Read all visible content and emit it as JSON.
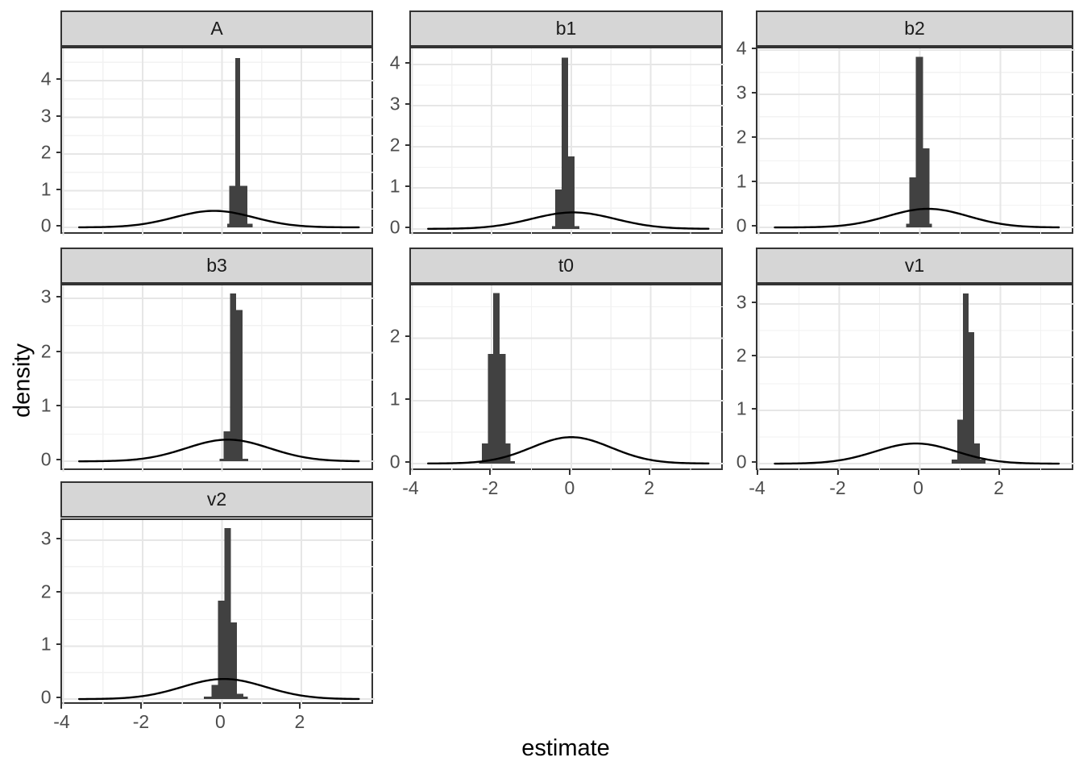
{
  "figure": {
    "xlabel": "estimate",
    "ylabel": "density",
    "x_ticks": [
      -4,
      -2,
      0,
      2
    ],
    "x_minor": [
      -3,
      -1,
      1,
      3
    ],
    "xlim": [
      -4.03,
      3.85
    ],
    "curve_span": [
      -3.6,
      3.45
    ],
    "grid": "on",
    "colors": {
      "background": "#ffffff",
      "bar_fill": "#414141",
      "density_line": "#000000",
      "strip_fill": "#d6d6d6",
      "strip_border": "#333333",
      "panel_border": "#333333",
      "grid_major": "#e6e6e6",
      "grid_minor": "#f2f2f2",
      "tick_mark": "#333333",
      "tick_label": "#4d4d4d",
      "axis_title": "#000000"
    }
  },
  "chart_data": [
    {
      "type": "histogram+density",
      "label": "A",
      "row": 0,
      "col": 0,
      "ylim": [
        -0.22,
        4.88
      ],
      "y_ticks": [
        0,
        1,
        2,
        3,
        4
      ],
      "show_x_axis": false,
      "bars": [
        [
          0.13,
          0.77,
          0.1
        ],
        [
          0.18,
          0.64,
          1.13
        ],
        [
          0.34,
          0.46,
          4.62
        ]
      ],
      "curve": {
        "mu": -0.2,
        "sigma": 1.0,
        "peak": 0.45
      }
    },
    {
      "type": "histogram+density",
      "label": "b1",
      "row": 0,
      "col": 1,
      "ylim": [
        -0.16,
        4.39
      ],
      "y_ticks": [
        0,
        1,
        2,
        3,
        4
      ],
      "show_x_axis": false,
      "bars": [
        [
          -0.48,
          0.2,
          0.07
        ],
        [
          -0.4,
          -0.24,
          0.96
        ],
        [
          -0.08,
          0.08,
          1.76
        ],
        [
          -0.24,
          -0.08,
          4.16
        ]
      ],
      "curve": {
        "mu": 0.05,
        "sigma": 1.05,
        "peak": 0.4
      }
    },
    {
      "type": "histogram+density",
      "label": "b2",
      "row": 0,
      "col": 2,
      "ylim": [
        -0.18,
        4.04
      ],
      "y_ticks": [
        0,
        1,
        2,
        3,
        4
      ],
      "show_x_axis": false,
      "bars": [
        [
          -0.34,
          0.3,
          0.08
        ],
        [
          -0.26,
          -0.1,
          1.13
        ],
        [
          0.08,
          0.24,
          1.78
        ],
        [
          -0.1,
          0.08,
          3.85
        ]
      ],
      "curve": {
        "mu": 0.2,
        "sigma": 1.0,
        "peak": 0.42
      }
    },
    {
      "type": "histogram+density",
      "label": "b3",
      "row": 1,
      "col": 0,
      "ylim": [
        -0.19,
        3.24
      ],
      "y_ticks": [
        0,
        1,
        2,
        3
      ],
      "show_x_axis": false,
      "bars": [
        [
          -0.06,
          0.66,
          0.05
        ],
        [
          0.04,
          0.2,
          0.55
        ],
        [
          0.36,
          0.52,
          2.79
        ],
        [
          0.2,
          0.36,
          3.09
        ]
      ],
      "curve": {
        "mu": 0.15,
        "sigma": 1.05,
        "peak": 0.4
      }
    },
    {
      "type": "histogram+density",
      "label": "t0",
      "row": 1,
      "col": 1,
      "ylim": [
        -0.13,
        2.84
      ],
      "y_ticks": [
        0,
        1,
        2
      ],
      "show_x_axis": true,
      "bars": [
        [
          -2.32,
          -1.42,
          0.04
        ],
        [
          -2.25,
          -1.53,
          0.32
        ],
        [
          -2.1,
          -1.65,
          1.75
        ],
        [
          -1.96,
          -1.8,
          2.72
        ]
      ],
      "curve": {
        "mu": 0.0,
        "sigma": 1.0,
        "peak": 0.42
      }
    },
    {
      "type": "histogram+density",
      "label": "v1",
      "row": 1,
      "col": 2,
      "ylim": [
        -0.15,
        3.35
      ],
      "y_ticks": [
        0,
        1,
        2,
        3
      ],
      "show_x_axis": true,
      "bars": [
        [
          0.79,
          1.63,
          0.08
        ],
        [
          0.93,
          1.07,
          0.83
        ],
        [
          1.35,
          1.49,
          0.38
        ],
        [
          1.21,
          1.35,
          2.47
        ],
        [
          1.07,
          1.21,
          3.2
        ]
      ],
      "curve": {
        "mu": -0.1,
        "sigma": 1.0,
        "peak": 0.38
      }
    },
    {
      "type": "histogram+density",
      "label": "v2",
      "row": 2,
      "col": 0,
      "ylim": [
        -0.12,
        3.38
      ],
      "y_ticks": [
        0,
        1,
        2,
        3
      ],
      "show_x_axis": true,
      "bars": [
        [
          -0.46,
          0.65,
          0.05
        ],
        [
          -0.26,
          -0.1,
          0.27
        ],
        [
          -0.1,
          0.06,
          1.86
        ],
        [
          0.22,
          0.38,
          1.45
        ],
        [
          0.38,
          0.54,
          0.1
        ],
        [
          0.06,
          0.22,
          3.23
        ]
      ],
      "curve": {
        "mu": 0.05,
        "sigma": 1.05,
        "peak": 0.38
      }
    }
  ]
}
